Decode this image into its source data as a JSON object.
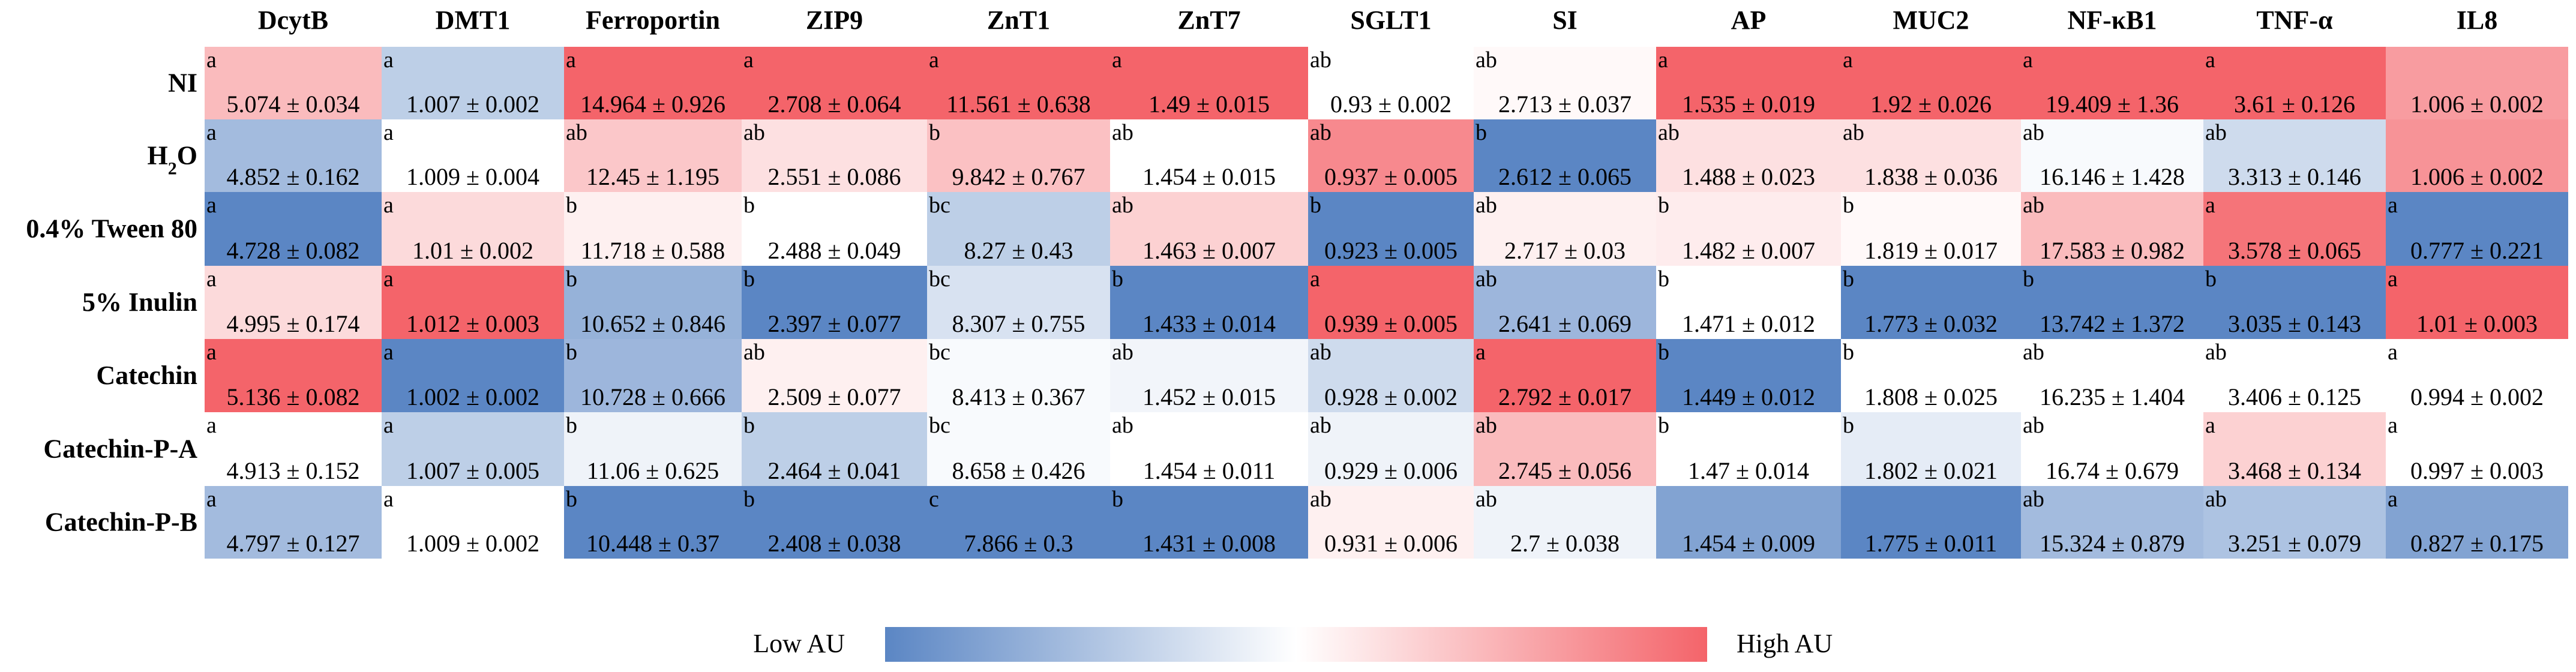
{
  "chart_data": {
    "type": "heatmap",
    "title": "",
    "columns": [
      "DcytB",
      "DMT1",
      "Ferroportin",
      "ZIP9",
      "ZnT1",
      "ZnT7",
      "SGLT1",
      "SI",
      "AP",
      "MUC2",
      "NF-κB1",
      "TNF-α",
      "IL8"
    ],
    "rows": [
      {
        "name": "NI",
        "name_main": "NI",
        "name_sub": ""
      },
      {
        "name": "H2O",
        "name_main": "H",
        "name_sub": "2",
        "name_tail": "O"
      },
      {
        "name": "0.4% Tween 80",
        "name_main": "0.4% Tween 80",
        "name_sub": ""
      },
      {
        "name": "5% Inulin",
        "name_main": "5% Inulin",
        "name_sub": ""
      },
      {
        "name": "Catechin",
        "name_main": "Catechin",
        "name_sub": ""
      },
      {
        "name": "Catechin-P-A",
        "name_main": "Catechin-P-A",
        "name_sub": ""
      },
      {
        "name": "Catechin-P-B",
        "name_main": "Catechin-P-B",
        "name_sub": ""
      }
    ],
    "cells": [
      [
        {
          "letter": "a",
          "text": "5.074 ± 0.034",
          "mean": 5.074,
          "sd": 0.034,
          "level": 0.72
        },
        {
          "letter": "a",
          "text": "1.007 ± 0.002",
          "mean": 1.007,
          "sd": 0.002,
          "level": 0.3
        },
        {
          "letter": "a",
          "text": "14.964 ± 0.926",
          "mean": 14.964,
          "sd": 0.926,
          "level": 1.0
        },
        {
          "letter": "a",
          "text": "2.708 ± 0.064",
          "mean": 2.708,
          "sd": 0.064,
          "level": 1.0
        },
        {
          "letter": "a",
          "text": "11.561 ± 0.638",
          "mean": 11.561,
          "sd": 0.638,
          "level": 1.0
        },
        {
          "letter": "a",
          "text": "1.49 ± 0.015",
          "mean": 1.49,
          "sd": 0.015,
          "level": 1.0
        },
        {
          "letter": "ab",
          "text": "0.93 ± 0.002",
          "mean": 0.93,
          "sd": 0.002,
          "level": 0.5
        },
        {
          "letter": "ab",
          "text": "2.713 ± 0.037",
          "mean": 2.713,
          "sd": 0.037,
          "level": 0.52
        },
        {
          "letter": "a",
          "text": "1.535 ± 0.019",
          "mean": 1.535,
          "sd": 0.019,
          "level": 1.0
        },
        {
          "letter": "a",
          "text": "1.92 ± 0.026",
          "mean": 1.92,
          "sd": 0.026,
          "level": 1.0
        },
        {
          "letter": "a",
          "text": "19.409 ± 1.36",
          "mean": 19.409,
          "sd": 1.36,
          "level": 1.0
        },
        {
          "letter": "a",
          "text": "3.61 ± 0.126",
          "mean": 3.61,
          "sd": 0.126,
          "level": 1.0
        },
        {
          "letter": "",
          "text": "1.006 ± 0.002",
          "mean": 1.006,
          "sd": 0.002,
          "level": 0.82
        }
      ],
      [
        {
          "letter": "a",
          "text": "4.852 ± 0.162",
          "mean": 4.852,
          "sd": 0.162,
          "level": 0.22
        },
        {
          "letter": "a",
          "text": "1.009 ± 0.004",
          "mean": 1.009,
          "sd": 0.004,
          "level": 0.5
        },
        {
          "letter": "ab",
          "text": "12.45 ± 1.195",
          "mean": 12.45,
          "sd": 1.195,
          "level": 0.68
        },
        {
          "letter": "ab",
          "text": "2.551 ± 0.086",
          "mean": 2.551,
          "sd": 0.086,
          "level": 0.6
        },
        {
          "letter": "b",
          "text": "9.842 ± 0.767",
          "mean": 9.842,
          "sd": 0.767,
          "level": 0.7
        },
        {
          "letter": "ab",
          "text": "1.454 ± 0.015",
          "mean": 1.454,
          "sd": 0.015,
          "level": 0.5
        },
        {
          "letter": "ab",
          "text": "0.937 ± 0.005",
          "mean": 0.937,
          "sd": 0.005,
          "level": 0.88
        },
        {
          "letter": "b",
          "text": "2.612 ± 0.065",
          "mean": 2.612,
          "sd": 0.065,
          "level": 0.0
        },
        {
          "letter": "ab",
          "text": "1.488 ± 0.023",
          "mean": 1.488,
          "sd": 0.023,
          "level": 0.6
        },
        {
          "letter": "ab",
          "text": "1.838 ± 0.036",
          "mean": 1.838,
          "sd": 0.036,
          "level": 0.6
        },
        {
          "letter": "ab",
          "text": "16.146 ± 1.428",
          "mean": 16.146,
          "sd": 1.428,
          "level": 0.48
        },
        {
          "letter": "ab",
          "text": "3.313 ± 0.146",
          "mean": 3.313,
          "sd": 0.146,
          "level": 0.35
        },
        {
          "letter": "",
          "text": "1.006 ± 0.002",
          "mean": 1.006,
          "sd": 0.002,
          "level": 0.85
        }
      ],
      [
        {
          "letter": "a",
          "text": "4.728 ± 0.082",
          "mean": 4.728,
          "sd": 0.082,
          "level": 0.0
        },
        {
          "letter": "a",
          "text": "1.01 ± 0.002",
          "mean": 1.01,
          "sd": 0.002,
          "level": 0.62
        },
        {
          "letter": "b",
          "text": "11.718 ± 0.588",
          "mean": 11.718,
          "sd": 0.588,
          "level": 0.55
        },
        {
          "letter": "b",
          "text": "2.488 ± 0.049",
          "mean": 2.488,
          "sd": 0.049,
          "level": 0.5
        },
        {
          "letter": "bc",
          "text": "8.27 ± 0.43",
          "mean": 8.27,
          "sd": 0.43,
          "level": 0.3
        },
        {
          "letter": "ab",
          "text": "1.463 ± 0.007",
          "mean": 1.463,
          "sd": 0.007,
          "level": 0.65
        },
        {
          "letter": "b",
          "text": "0.923 ± 0.005",
          "mean": 0.923,
          "sd": 0.005,
          "level": 0.0
        },
        {
          "letter": "ab",
          "text": "2.717 ± 0.03",
          "mean": 2.717,
          "sd": 0.03,
          "level": 0.55
        },
        {
          "letter": "b",
          "text": "1.482 ± 0.007",
          "mean": 1.482,
          "sd": 0.007,
          "level": 0.56
        },
        {
          "letter": "b",
          "text": "1.819 ± 0.017",
          "mean": 1.819,
          "sd": 0.017,
          "level": 0.52
        },
        {
          "letter": "ab",
          "text": "17.583 ± 0.982",
          "mean": 17.583,
          "sd": 0.982,
          "level": 0.72
        },
        {
          "letter": "a",
          "text": "3.578 ± 0.065",
          "mean": 3.578,
          "sd": 0.065,
          "level": 0.95
        },
        {
          "letter": "a",
          "text": "0.777 ± 0.221",
          "mean": 0.777,
          "sd": 0.221,
          "level": 0.0
        }
      ],
      [
        {
          "letter": "a",
          "text": "4.995 ± 0.174",
          "mean": 4.995,
          "sd": 0.174,
          "level": 0.62
        },
        {
          "letter": "a",
          "text": "1.012 ± 0.003",
          "mean": 1.012,
          "sd": 0.003,
          "level": 1.0
        },
        {
          "letter": "b",
          "text": "10.652 ± 0.846",
          "mean": 10.652,
          "sd": 0.846,
          "level": 0.18
        },
        {
          "letter": "b",
          "text": "2.397 ± 0.077",
          "mean": 2.397,
          "sd": 0.077,
          "level": 0.0
        },
        {
          "letter": "bc",
          "text": "8.307 ± 0.755",
          "mean": 8.307,
          "sd": 0.755,
          "level": 0.38
        },
        {
          "letter": "b",
          "text": "1.433 ± 0.014",
          "mean": 1.433,
          "sd": 0.014,
          "level": 0.0
        },
        {
          "letter": "a",
          "text": "0.939 ± 0.005",
          "mean": 0.939,
          "sd": 0.005,
          "level": 1.0
        },
        {
          "letter": "ab",
          "text": "2.641 ± 0.069",
          "mean": 2.641,
          "sd": 0.069,
          "level": 0.2
        },
        {
          "letter": "b",
          "text": "1.471 ± 0.012",
          "mean": 1.471,
          "sd": 0.012,
          "level": 0.5
        },
        {
          "letter": "b",
          "text": "1.773 ± 0.032",
          "mean": 1.773,
          "sd": 0.032,
          "level": 0.0
        },
        {
          "letter": "b",
          "text": "13.742 ± 1.372",
          "mean": 13.742,
          "sd": 1.372,
          "level": 0.0
        },
        {
          "letter": "b",
          "text": "3.035 ± 0.143",
          "mean": 3.035,
          "sd": 0.143,
          "level": 0.0
        },
        {
          "letter": "a",
          "text": "1.01 ± 0.003",
          "mean": 1.01,
          "sd": 0.003,
          "level": 1.0
        }
      ],
      [
        {
          "letter": "a",
          "text": "5.136 ± 0.082",
          "mean": 5.136,
          "sd": 0.082,
          "level": 1.0
        },
        {
          "letter": "a",
          "text": "1.002 ± 0.002",
          "mean": 1.002,
          "sd": 0.002,
          "level": 0.0
        },
        {
          "letter": "b",
          "text": "10.728 ± 0.666",
          "mean": 10.728,
          "sd": 0.666,
          "level": 0.2
        },
        {
          "letter": "ab",
          "text": "2.509 ± 0.077",
          "mean": 2.509,
          "sd": 0.077,
          "level": 0.55
        },
        {
          "letter": "bc",
          "text": "8.413 ± 0.367",
          "mean": 8.413,
          "sd": 0.367,
          "level": 0.48
        },
        {
          "letter": "ab",
          "text": "1.452 ± 0.015",
          "mean": 1.452,
          "sd": 0.015,
          "level": 0.46
        },
        {
          "letter": "ab",
          "text": "0.928 ± 0.002",
          "mean": 0.928,
          "sd": 0.002,
          "level": 0.35
        },
        {
          "letter": "a",
          "text": "2.792 ± 0.017",
          "mean": 2.792,
          "sd": 0.017,
          "level": 1.0
        },
        {
          "letter": "b",
          "text": "1.449 ± 0.012",
          "mean": 1.449,
          "sd": 0.012,
          "level": 0.0
        },
        {
          "letter": "b",
          "text": "1.808 ± 0.025",
          "mean": 1.808,
          "sd": 0.025,
          "level": 0.5
        },
        {
          "letter": "ab",
          "text": "16.235 ± 1.404",
          "mean": 16.235,
          "sd": 1.404,
          "level": 0.5
        },
        {
          "letter": "ab",
          "text": "3.406 ± 0.125",
          "mean": 3.406,
          "sd": 0.125,
          "level": 0.5
        },
        {
          "letter": "a",
          "text": "0.994 ± 0.002",
          "mean": 0.994,
          "sd": 0.002,
          "level": 0.5
        }
      ],
      [
        {
          "letter": "a",
          "text": "4.913 ± 0.152",
          "mean": 4.913,
          "sd": 0.152,
          "level": 0.5
        },
        {
          "letter": "a",
          "text": "1.007 ± 0.005",
          "mean": 1.007,
          "sd": 0.005,
          "level": 0.3
        },
        {
          "letter": "b",
          "text": "11.06 ± 0.625",
          "mean": 11.06,
          "sd": 0.625,
          "level": 0.45
        },
        {
          "letter": "b",
          "text": "2.464 ± 0.041",
          "mean": 2.464,
          "sd": 0.041,
          "level": 0.3
        },
        {
          "letter": "bc",
          "text": "8.658 ± 0.426",
          "mean": 8.658,
          "sd": 0.426,
          "level": 0.48
        },
        {
          "letter": "ab",
          "text": "1.454 ± 0.011",
          "mean": 1.454,
          "sd": 0.011,
          "level": 0.5
        },
        {
          "letter": "ab",
          "text": "0.929 ± 0.006",
          "mean": 0.929,
          "sd": 0.006,
          "level": 0.45
        },
        {
          "letter": "ab",
          "text": "2.745 ± 0.056",
          "mean": 2.745,
          "sd": 0.056,
          "level": 0.72
        },
        {
          "letter": "b",
          "text": "1.47 ± 0.014",
          "mean": 1.47,
          "sd": 0.014,
          "level": 0.5
        },
        {
          "letter": "b",
          "text": "1.802 ± 0.021",
          "mean": 1.802,
          "sd": 0.021,
          "level": 0.42
        },
        {
          "letter": "ab",
          "text": "16.74 ± 0.679",
          "mean": 16.74,
          "sd": 0.679,
          "level": 0.5
        },
        {
          "letter": "a",
          "text": "3.468 ± 0.134",
          "mean": 3.468,
          "sd": 0.134,
          "level": 0.65
        },
        {
          "letter": "a",
          "text": "0.997 ± 0.003",
          "mean": 0.997,
          "sd": 0.003,
          "level": 0.5
        }
      ],
      [
        {
          "letter": "a",
          "text": "4.797 ± 0.127",
          "mean": 4.797,
          "sd": 0.127,
          "level": 0.22
        },
        {
          "letter": "a",
          "text": "1.009 ± 0.002",
          "mean": 1.009,
          "sd": 0.002,
          "level": 0.5
        },
        {
          "letter": "b",
          "text": "10.448 ± 0.37",
          "mean": 10.448,
          "sd": 0.37,
          "level": 0.0
        },
        {
          "letter": "b",
          "text": "2.408 ± 0.038",
          "mean": 2.408,
          "sd": 0.038,
          "level": 0.0
        },
        {
          "letter": "c",
          "text": "7.866 ± 0.3",
          "mean": 7.866,
          "sd": 0.3,
          "level": 0.0
        },
        {
          "letter": "b",
          "text": "1.431 ± 0.008",
          "mean": 1.431,
          "sd": 0.008,
          "level": 0.0
        },
        {
          "letter": "ab",
          "text": "0.931 ± 0.006",
          "mean": 0.931,
          "sd": 0.006,
          "level": 0.55
        },
        {
          "letter": "ab",
          "text": "2.7 ± 0.038",
          "mean": 2.7,
          "sd": 0.038,
          "level": 0.45
        },
        {
          "letter": "",
          "text": "1.454 ± 0.009",
          "mean": 1.454,
          "sd": 0.009,
          "level": 0.12
        },
        {
          "letter": "",
          "text": "1.775 ± 0.011",
          "mean": 1.775,
          "sd": 0.011,
          "level": 0.0
        },
        {
          "letter": "ab",
          "text": "15.324 ± 0.879",
          "mean": 15.324,
          "sd": 0.879,
          "level": 0.22
        },
        {
          "letter": "ab",
          "text": "3.251 ± 0.079",
          "mean": 3.251,
          "sd": 0.079,
          "level": 0.25
        },
        {
          "letter": "a",
          "text": "0.827 ± 0.175",
          "mean": 0.827,
          "sd": 0.175,
          "level": 0.12
        }
      ]
    ],
    "colorscale": {
      "low": "#5b86c4",
      "mid": "#ffffff",
      "high": "#f4646a"
    },
    "legend": {
      "low_label": "Low AU",
      "high_label": "High AU"
    }
  }
}
